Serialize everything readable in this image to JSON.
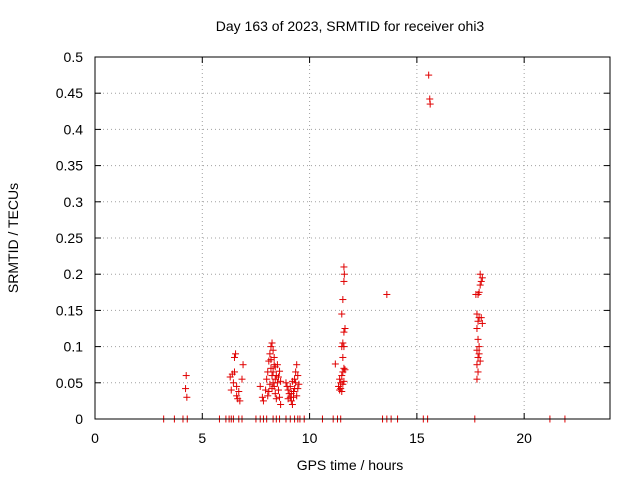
{
  "chart_data": {
    "type": "scatter",
    "title": "Day 163 of 2023, SRMTID for receiver ohi3",
    "xlabel": "GPS time / hours",
    "ylabel": "SRMTID / TECUs",
    "xlim": [
      0,
      24
    ],
    "ylim": [
      0,
      0.5
    ],
    "xticks": [
      0,
      5,
      10,
      15,
      20
    ],
    "xtick_labels": [
      "0",
      "5",
      "10",
      "15",
      "20"
    ],
    "yticks": [
      0,
      0.05,
      0.1,
      0.15,
      0.2,
      0.25,
      0.3,
      0.35,
      0.4,
      0.45,
      0.5
    ],
    "ytick_labels": [
      "0",
      "0.05",
      "0.1",
      "0.15",
      "0.2",
      "0.25",
      "0.3",
      "0.35",
      "0.4",
      "0.45",
      "0.5"
    ],
    "grid": true,
    "marker": "+",
    "marker_color": "#e00000",
    "series": [
      {
        "name": "SRMTID",
        "points": [
          [
            3.2,
            0
          ],
          [
            3.7,
            0
          ],
          [
            4.1,
            0
          ],
          [
            4.3,
            0
          ],
          [
            4.25,
            0.06
          ],
          [
            4.22,
            0.042
          ],
          [
            4.28,
            0.03
          ],
          [
            5.8,
            0
          ],
          [
            6.1,
            0
          ],
          [
            6.25,
            0
          ],
          [
            6.35,
            0
          ],
          [
            6.45,
            0
          ],
          [
            6.7,
            0
          ],
          [
            6.85,
            0
          ],
          [
            6.3,
            0.058
          ],
          [
            6.4,
            0.062
          ],
          [
            6.5,
            0.085
          ],
          [
            6.55,
            0.09
          ],
          [
            6.45,
            0.05
          ],
          [
            6.6,
            0.045
          ],
          [
            6.35,
            0.04
          ],
          [
            6.7,
            0.038
          ],
          [
            6.6,
            0.032
          ],
          [
            6.75,
            0.025
          ],
          [
            6.85,
            0.055
          ],
          [
            6.9,
            0.075
          ],
          [
            6.5,
            0.065
          ],
          [
            6.65,
            0.028
          ],
          [
            7.5,
            0
          ],
          [
            7.7,
            0
          ],
          [
            7.85,
            0
          ],
          [
            8.0,
            0
          ],
          [
            8.3,
            0
          ],
          [
            8.45,
            0
          ],
          [
            8.6,
            0
          ],
          [
            8.9,
            0
          ],
          [
            9.1,
            0
          ],
          [
            9.3,
            0
          ],
          [
            9.45,
            0
          ],
          [
            9.55,
            0
          ],
          [
            9.75,
            0
          ],
          [
            7.7,
            0.045
          ],
          [
            7.8,
            0.03
          ],
          [
            7.85,
            0.025
          ],
          [
            7.95,
            0.04
          ],
          [
            8.0,
            0.055
          ],
          [
            8.05,
            0.065
          ],
          [
            8.1,
            0.08
          ],
          [
            8.15,
            0.09
          ],
          [
            8.2,
            0.1
          ],
          [
            8.25,
            0.105
          ],
          [
            8.3,
            0.095
          ],
          [
            8.35,
            0.085
          ],
          [
            8.4,
            0.072
          ],
          [
            8.45,
            0.06
          ],
          [
            8.5,
            0.05
          ],
          [
            8.55,
            0.04
          ],
          [
            8.6,
            0.03
          ],
          [
            8.65,
            0.02
          ],
          [
            8.2,
            0.07
          ],
          [
            8.25,
            0.06
          ],
          [
            8.3,
            0.05
          ],
          [
            8.35,
            0.045
          ],
          [
            8.4,
            0.035
          ],
          [
            8.45,
            0.028
          ],
          [
            8.1,
            0.038
          ],
          [
            8.15,
            0.048
          ],
          [
            8.05,
            0.032
          ],
          [
            8.55,
            0.058
          ],
          [
            8.6,
            0.066
          ],
          [
            8.65,
            0.052
          ],
          [
            8.5,
            0.075
          ],
          [
            8.3,
            0.065
          ],
          [
            8.4,
            0.055
          ],
          [
            8.25,
            0.042
          ],
          [
            8.35,
            0.075
          ],
          [
            8.2,
            0.082
          ],
          [
            8.9,
            0.05
          ],
          [
            8.95,
            0.045
          ],
          [
            9.0,
            0.04
          ],
          [
            9.05,
            0.035
          ],
          [
            9.1,
            0.03
          ],
          [
            9.15,
            0.025
          ],
          [
            9.2,
            0.02
          ],
          [
            9.25,
            0.038
          ],
          [
            9.3,
            0.055
          ],
          [
            9.35,
            0.065
          ],
          [
            9.4,
            0.075
          ],
          [
            9.45,
            0.06
          ],
          [
            9.5,
            0.048
          ],
          [
            9.1,
            0.045
          ],
          [
            9.2,
            0.052
          ],
          [
            9.3,
            0.042
          ],
          [
            9.0,
            0.028
          ],
          [
            9.15,
            0.035
          ],
          [
            9.4,
            0.032
          ],
          [
            9.45,
            0.042
          ],
          [
            9.25,
            0.03
          ],
          [
            9.35,
            0.05
          ],
          [
            10.6,
            0
          ],
          [
            11.1,
            0
          ],
          [
            11.3,
            0
          ],
          [
            11.45,
            0
          ],
          [
            11.2,
            0.076
          ],
          [
            11.35,
            0.045
          ],
          [
            11.4,
            0.04
          ],
          [
            11.45,
            0.05
          ],
          [
            11.5,
            0.06
          ],
          [
            11.55,
            0.065
          ],
          [
            11.6,
            0.07
          ],
          [
            11.5,
            0.1
          ],
          [
            11.55,
            0.105
          ],
          [
            11.6,
            0.12
          ],
          [
            11.65,
            0.125
          ],
          [
            11.5,
            0.145
          ],
          [
            11.55,
            0.165
          ],
          [
            11.6,
            0.19
          ],
          [
            11.62,
            0.2
          ],
          [
            11.6,
            0.21
          ],
          [
            11.4,
            0.055
          ],
          [
            11.45,
            0.042
          ],
          [
            11.5,
            0.038
          ],
          [
            11.55,
            0.048
          ],
          [
            11.6,
            0.052
          ],
          [
            11.65,
            0.068
          ],
          [
            11.55,
            0.085
          ],
          [
            11.6,
            0.1
          ],
          [
            13.4,
            0
          ],
          [
            13.6,
            0
          ],
          [
            13.8,
            0
          ],
          [
            14.1,
            0
          ],
          [
            13.6,
            0.172
          ],
          [
            15.3,
            0
          ],
          [
            15.5,
            0
          ],
          [
            15.55,
            0.475
          ],
          [
            15.6,
            0.442
          ],
          [
            15.62,
            0.435
          ],
          [
            17.7,
            0
          ],
          [
            21.2,
            0
          ],
          [
            21.9,
            0
          ],
          [
            17.8,
            0.055
          ],
          [
            17.85,
            0.065
          ],
          [
            17.8,
            0.075
          ],
          [
            17.85,
            0.085
          ],
          [
            17.8,
            0.095
          ],
          [
            17.9,
            0.1
          ],
          [
            17.85,
            0.11
          ],
          [
            17.8,
            0.125
          ],
          [
            17.85,
            0.135
          ],
          [
            17.9,
            0.14
          ],
          [
            17.8,
            0.145
          ],
          [
            17.85,
            0.172
          ],
          [
            17.9,
            0.175
          ],
          [
            17.95,
            0.185
          ],
          [
            18.0,
            0.19
          ],
          [
            18.05,
            0.195
          ],
          [
            17.95,
            0.2
          ],
          [
            18.0,
            0.14
          ],
          [
            18.05,
            0.132
          ],
          [
            17.75,
            0.172
          ],
          [
            17.9,
            0.09
          ],
          [
            17.95,
            0.08
          ]
        ]
      }
    ]
  }
}
